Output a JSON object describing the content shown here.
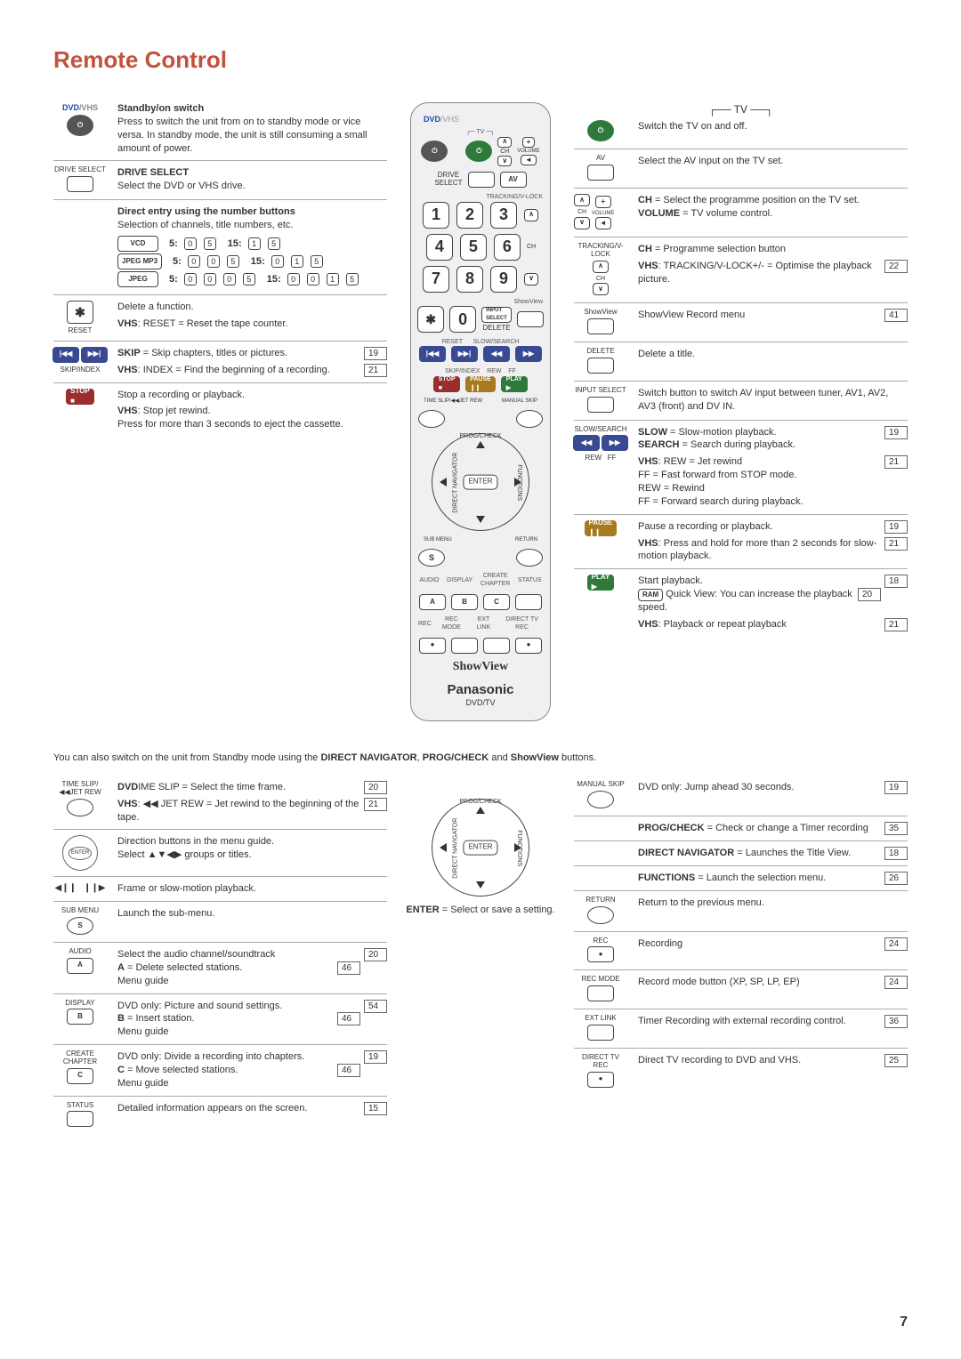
{
  "title": "Remote Control",
  "page_number": "7",
  "note_text": "You can also switch on the unit from Standby mode using the DIRECT NAVIGATOR, PROG/CHECK and ShowView buttons.",
  "center_caption": "ENTER = Select or save a setting.",
  "remote": {
    "dvd": "DVD",
    "vhs": "/VHS",
    "brand": "Panasonic",
    "model": "DVD/TV",
    "showview": "ShowView"
  },
  "left": [
    {
      "icon_label": "",
      "icon_type": "power-dvd",
      "title": "Standby/on switch",
      "text": "Press to switch the unit from on to standby mode or vice versa. In standby mode, the unit is still consuming a small amount of power."
    },
    {
      "icon_label": "DRIVE SELECT",
      "title": "DRIVE SELECT",
      "text": "Select the DVD or VHS drive."
    },
    {
      "title": "Direct entry using the number buttons",
      "text": "Selection of channels, title numbers, etc.",
      "table": [
        [
          "VCD",
          "5:",
          [
            "0",
            "5"
          ],
          "15:",
          [
            "1",
            "5"
          ]
        ],
        [
          "JPEG MP3",
          "5:",
          [
            "0",
            "0",
            "5"
          ],
          "15:",
          [
            "0",
            "1",
            "5"
          ]
        ],
        [
          "JPEG",
          "5:",
          [
            "0",
            "0",
            "0",
            "5"
          ],
          "15:",
          [
            "0",
            "0",
            "1",
            "5"
          ]
        ]
      ]
    },
    {
      "icon_label": "✱",
      "icon_sub": "RESET",
      "text": "Delete a function.",
      "sub": {
        "prefix": "VHS",
        "body": ": RESET = Reset the tape counter."
      }
    },
    {
      "icon_type": "skip",
      "icon_sub": "SKIP/INDEX",
      "lines": [
        {
          "body": "SKIP = Skip chapters, titles or pictures.",
          "prefix_bold": "SKIP",
          "pg": "19"
        }
      ],
      "sub": {
        "prefix": "VHS",
        "body": ": INDEX = Find the beginning of a recording.",
        "pg": "21"
      }
    },
    {
      "icon_type": "stop",
      "text": "Stop a recording or playback.",
      "sub": {
        "prefix": "VHS",
        "body": ": Stop jet rewind.\nPress for more than 3 seconds to eject the cassette."
      }
    }
  ],
  "right_top": [
    {
      "heading": "TV"
    },
    {
      "icon_type": "tv-power",
      "text": "Switch the TV on and off."
    },
    {
      "icon_label": "AV",
      "text": "Select the AV input on the TV set."
    },
    {
      "icon_type": "ch-vol",
      "lines": [
        {
          "body": "CH = Select the programme position on the TV set.",
          "prefix_bold": "CH"
        },
        {
          "body": "VOLUME = TV volume control.",
          "prefix_bold": "VOLUME"
        }
      ]
    },
    {
      "icon_label_top": "TRACKING/V-LOCK",
      "icon_type": "ch-updown",
      "lines": [
        {
          "body": "CH = Programme selection button",
          "prefix_bold": "CH"
        }
      ],
      "sub": {
        "prefix": "VHS",
        "body": ": TRACKING/V-LOCK+/- = Optimise the playback picture.",
        "pg": "22"
      }
    },
    {
      "icon_label": "ShowView",
      "text": "ShowView Record menu",
      "pg": "41"
    },
    {
      "icon_label": "DELETE",
      "text": "Delete a title."
    },
    {
      "icon_label": "INPUT SELECT",
      "text": "Switch button to switch AV input between tuner, AV1, AV2, AV3 (front) and DV IN."
    },
    {
      "icon_label": "SLOW/SEARCH",
      "icon_type": "rew-ff",
      "lines": [
        {
          "body": "SLOW = Slow-motion playback.",
          "prefix_bold": "SLOW",
          "pg": "19"
        },
        {
          "body": "SEARCH = Search during playback.",
          "prefix_bold": "SEARCH"
        }
      ],
      "sub": {
        "prefix": "VHS",
        "body": ": REW = Jet rewind\nFF    = Fast forward from STOP mode.\nREW = Rewind\nFF    = Forward search during playback.",
        "pg": "21"
      }
    },
    {
      "icon_type": "pause",
      "text": "Pause a recording or playback.",
      "pg": "19",
      "sub": {
        "prefix": "VHS",
        "body": ": Press and hold for more than 2 seconds for slow-motion playback.",
        "pg": "21"
      }
    },
    {
      "icon_type": "play",
      "text": "Start playback.",
      "pg": "18",
      "lines2": [
        {
          "prefix_box": "RAM",
          "body": " Quick View: You can increase the playback speed.",
          "pg": "20"
        }
      ],
      "sub": {
        "prefix": "VHS",
        "body": ": Playback or repeat playback",
        "pg": "21"
      }
    }
  ],
  "left_bottom": [
    {
      "icon_label": "TIME SLIP/◀◀JET REW",
      "icon_type": "circle",
      "lines": [
        {
          "prefix_bold": "DVD",
          "body": ": TIME SLIP = Select the time frame.",
          "pg": "20"
        }
      ],
      "sub": {
        "prefix": "VHS",
        "body": ": ◀◀ JET REW = Jet rewind to the beginning of the tape.",
        "pg": "21"
      }
    },
    {
      "icon_type": "dpad",
      "text": "Direction buttons in the menu guide.\nSelect ▲▼◀▶ groups or titles."
    },
    {
      "icon_type": "frame",
      "text": "Frame or slow-motion playback."
    },
    {
      "icon_label": "SUB MENU",
      "icon_type": "circle-s",
      "text": "Launch the sub-menu."
    },
    {
      "icon_label": "AUDIO",
      "icon_letter": "A",
      "lines": [
        {
          "body": "Select the audio channel/soundtrack",
          "pg": "20"
        },
        {
          "body": "A = Delete selected stations.\nMenu guide",
          "prefix_bold": "A",
          "pg": "46"
        }
      ]
    },
    {
      "icon_label": "DISPLAY",
      "icon_letter": "B",
      "lines": [
        {
          "body": "DVD only: Picture and sound settings.",
          "pg": "54"
        },
        {
          "body": "B = Insert station.\nMenu guide",
          "prefix_bold": "B",
          "pg": "46"
        }
      ]
    },
    {
      "icon_label": "CREATE CHAPTER",
      "icon_letter": "C",
      "lines": [
        {
          "body": "DVD only: Divide a recording into chapters.",
          "pg": "19"
        },
        {
          "body": "C = Move selected stations.\nMenu guide",
          "prefix_bold": "C",
          "pg": "46"
        }
      ]
    },
    {
      "icon_label": "STATUS",
      "text": "Detailed information appears on the screen.",
      "pg": "15"
    }
  ],
  "right_bottom": [
    {
      "icon_label": "MANUAL SKIP",
      "icon_type": "circle",
      "text": "DVD only: Jump ahead 30 seconds.",
      "pg": "19"
    },
    {
      "plain": "PROG/CHECK = Check or change a Timer recording",
      "prefix_bold": "PROG/CHECK",
      "pg": "35"
    },
    {
      "plain": "DIRECT NAVIGATOR = Launches the Title View.",
      "prefix_bold": "DIRECT NAVIGATOR",
      "pg": "18"
    },
    {
      "plain": "FUNCTIONS = Launch the selection menu.",
      "prefix_bold": "FUNCTIONS",
      "pg": "26"
    },
    {
      "icon_label": "RETURN",
      "icon_type": "circle",
      "text": "Return to the previous menu."
    },
    {
      "icon_label": "REC",
      "icon_type": "rec",
      "text": "Recording",
      "pg": "24"
    },
    {
      "icon_label": "REC MODE",
      "text": "Record mode button (XP, SP, LP, EP)",
      "pg": "24"
    },
    {
      "icon_label": "EXT LINK",
      "text": "Timer Recording with external recording control.",
      "pg": "36"
    },
    {
      "icon_label": "DIRECT TV REC",
      "icon_type": "rec",
      "text": "Direct TV recording to DVD and VHS.",
      "pg": "25"
    }
  ]
}
